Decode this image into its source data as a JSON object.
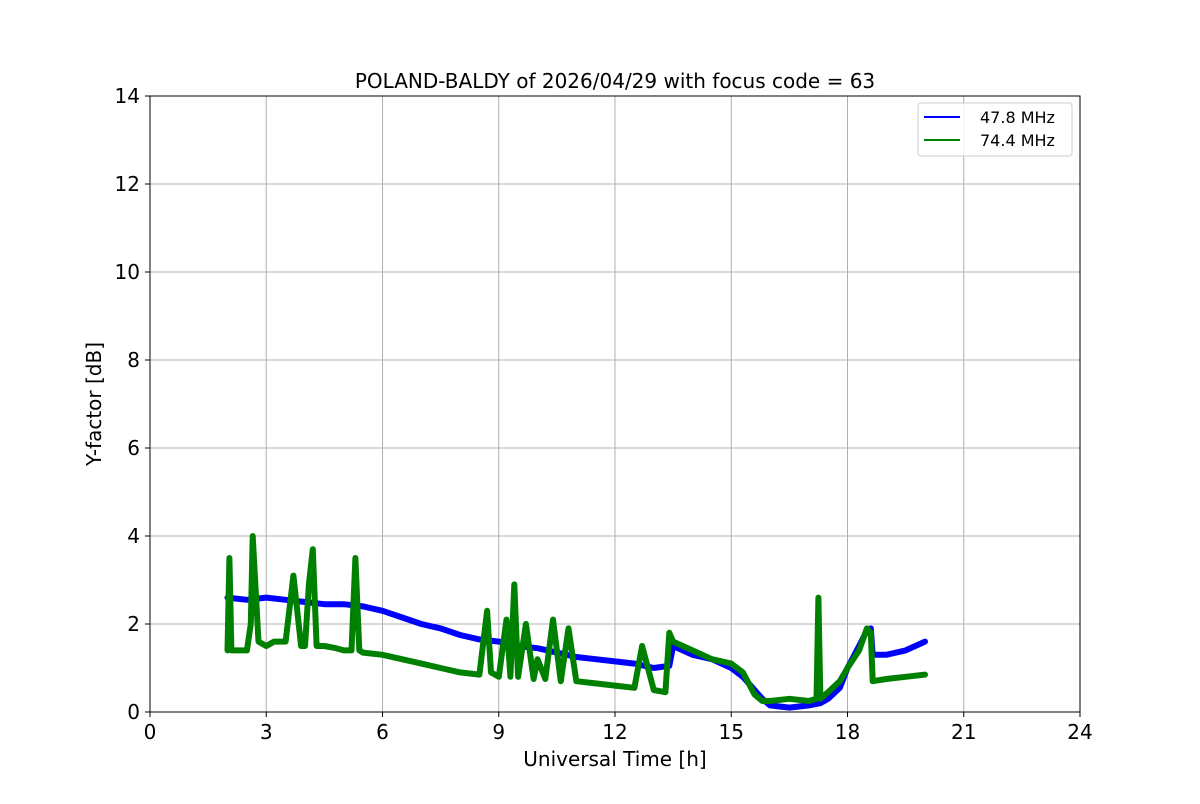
{
  "chart_data": {
    "type": "line",
    "title": "POLAND-BALDY of 2026/04/29 with focus code = 63",
    "xlabel": "Universal Time [h]",
    "ylabel": "Y-factor [dB]",
    "xlim": [
      0,
      24
    ],
    "ylim": [
      0,
      14
    ],
    "xticks": [
      0,
      3,
      6,
      9,
      12,
      15,
      18,
      21,
      24
    ],
    "yticks": [
      0,
      2,
      4,
      6,
      8,
      10,
      12,
      14
    ],
    "grid": true,
    "legend_position": "top-right",
    "series": [
      {
        "name": "47.8 MHz",
        "color": "#0000ff",
        "x": [
          2.0,
          2.5,
          3.0,
          3.5,
          4.0,
          4.5,
          5.0,
          5.5,
          6.0,
          6.5,
          7.0,
          7.5,
          8.0,
          8.5,
          9.0,
          9.5,
          10.0,
          10.5,
          11.0,
          11.5,
          12.0,
          12.5,
          13.0,
          13.4,
          13.5,
          14.0,
          14.5,
          15.0,
          15.3,
          15.6,
          15.8,
          16.0,
          16.5,
          17.0,
          17.3,
          17.5,
          17.8,
          18.0,
          18.3,
          18.5,
          18.6,
          18.65,
          19.0,
          19.5,
          20.0
        ],
        "values": [
          2.6,
          2.55,
          2.6,
          2.55,
          2.5,
          2.45,
          2.45,
          2.4,
          2.3,
          2.15,
          2.0,
          1.9,
          1.75,
          1.65,
          1.6,
          1.5,
          1.45,
          1.35,
          1.25,
          1.2,
          1.15,
          1.1,
          1.0,
          1.05,
          1.5,
          1.3,
          1.2,
          1.0,
          0.8,
          0.5,
          0.3,
          0.15,
          0.1,
          0.15,
          0.2,
          0.3,
          0.55,
          1.0,
          1.5,
          1.85,
          1.9,
          1.3,
          1.3,
          1.4,
          1.6
        ]
      },
      {
        "name": "74.4 MHz",
        "color": "#008000",
        "x": [
          2.0,
          2.05,
          2.1,
          2.3,
          2.5,
          2.6,
          2.65,
          2.8,
          3.0,
          3.2,
          3.5,
          3.7,
          3.9,
          4.0,
          4.1,
          4.2,
          4.3,
          4.5,
          4.8,
          5.0,
          5.2,
          5.3,
          5.4,
          5.5,
          6.0,
          6.5,
          7.0,
          7.5,
          8.0,
          8.5,
          8.7,
          8.8,
          9.0,
          9.2,
          9.3,
          9.4,
          9.5,
          9.7,
          9.9,
          10.0,
          10.2,
          10.4,
          10.6,
          10.8,
          11.0,
          11.5,
          12.0,
          12.5,
          12.7,
          13.0,
          13.3,
          13.4,
          13.5,
          14.0,
          14.5,
          15.0,
          15.3,
          15.6,
          15.8,
          16.0,
          16.5,
          17.0,
          17.2,
          17.25,
          17.3,
          17.5,
          17.8,
          18.0,
          18.3,
          18.5,
          18.6,
          18.65,
          19.0,
          19.5,
          20.0
        ],
        "values": [
          1.4,
          3.5,
          1.4,
          1.4,
          1.4,
          2.0,
          4.0,
          1.6,
          1.5,
          1.6,
          1.6,
          3.1,
          1.5,
          1.5,
          2.9,
          3.7,
          1.5,
          1.5,
          1.45,
          1.4,
          1.4,
          3.5,
          1.4,
          1.35,
          1.3,
          1.2,
          1.1,
          1.0,
          0.9,
          0.85,
          2.3,
          0.9,
          0.8,
          2.1,
          0.8,
          2.9,
          0.8,
          2.0,
          0.75,
          1.2,
          0.75,
          2.1,
          0.7,
          1.9,
          0.7,
          0.65,
          0.6,
          0.55,
          1.5,
          0.5,
          0.45,
          1.8,
          1.6,
          1.4,
          1.2,
          1.1,
          0.9,
          0.4,
          0.25,
          0.25,
          0.3,
          0.25,
          0.3,
          2.6,
          0.3,
          0.45,
          0.7,
          1.0,
          1.4,
          1.9,
          1.8,
          0.7,
          0.75,
          0.8,
          0.85
        ]
      }
    ]
  }
}
